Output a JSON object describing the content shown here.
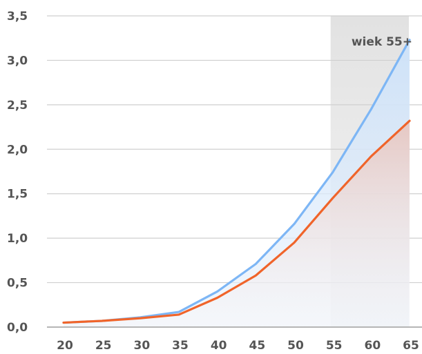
{
  "chart_data": {
    "type": "area",
    "x": [
      20,
      25,
      30,
      35,
      40,
      45,
      50,
      55,
      60,
      65
    ],
    "x_tick_labels": [
      "20",
      "25",
      "30",
      "35",
      "40",
      "45",
      "50",
      "55",
      "60",
      "65"
    ],
    "y_tick_values": [
      0,
      0.5,
      1,
      1.5,
      2,
      2.5,
      3,
      3.5
    ],
    "y_tick_labels": [
      "0,0",
      "0,5",
      "1,0",
      "1,5",
      "2,0",
      "2,5",
      "3,0",
      "3,5"
    ],
    "ylim": [
      0,
      3.5
    ],
    "xlim": [
      20,
      65
    ],
    "grid": true,
    "series": [
      {
        "values": [
          0.05,
          0.07,
          0.11,
          0.17,
          0.4,
          0.71,
          1.16,
          1.74,
          2.45,
          3.23
        ],
        "color": "#7db6f5",
        "fill_color": "#cde2f9"
      },
      {
        "values": [
          0.05,
          0.07,
          0.1,
          0.14,
          0.33,
          0.58,
          0.95,
          1.45,
          1.92,
          2.32
        ],
        "color": "#f0642a",
        "fill_color": "#f1c9bd"
      }
    ],
    "highlight_region": {
      "x_from": 55,
      "x_to": 65,
      "label": "wiek 55+",
      "color": "#e6e6e6"
    }
  }
}
